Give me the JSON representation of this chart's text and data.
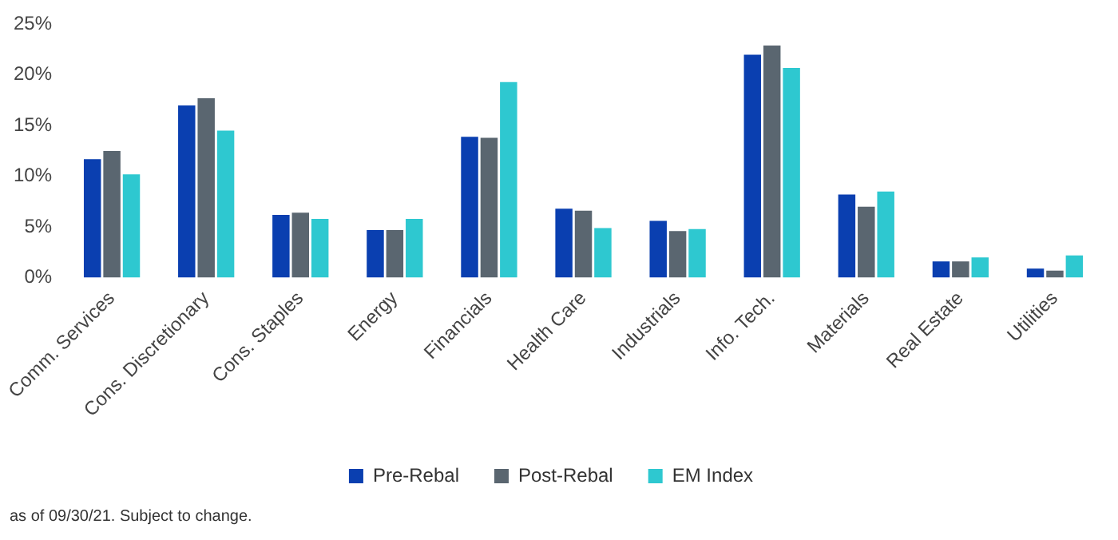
{
  "chart_data": {
    "type": "bar",
    "categories": [
      "Comm. Services",
      "Cons. Discretionary",
      "Cons. Staples",
      "Energy",
      "Financials",
      "Health Care",
      "Industrials",
      "Info. Tech.",
      "Materials",
      "Real Estate",
      "Utilities"
    ],
    "series": [
      {
        "name": "Pre-Rebal",
        "color": "#0a3fb0",
        "values": [
          11.7,
          17.0,
          6.2,
          4.7,
          13.9,
          6.8,
          5.6,
          22.0,
          8.2,
          1.6,
          0.9
        ]
      },
      {
        "name": "Post-Rebal",
        "color": "#5a6670",
        "values": [
          12.5,
          17.7,
          6.4,
          4.7,
          13.8,
          6.6,
          4.6,
          22.9,
          7.0,
          1.6,
          0.7
        ]
      },
      {
        "name": "EM Index",
        "color": "#2ec8d0",
        "values": [
          10.2,
          14.5,
          5.8,
          5.8,
          19.3,
          4.9,
          4.8,
          20.7,
          8.5,
          2.0,
          2.2
        ]
      }
    ],
    "ylim": [
      0,
      25
    ],
    "yticks": [
      {
        "value": 0,
        "label": "0%"
      },
      {
        "value": 5,
        "label": "5%"
      },
      {
        "value": 10,
        "label": "10%"
      },
      {
        "value": 15,
        "label": "15%"
      },
      {
        "value": 20,
        "label": "20%"
      },
      {
        "value": 25,
        "label": "25%"
      }
    ],
    "grid": false,
    "legend": "bottom",
    "annotations": [
      "as of 09/30/21. Subject to change."
    ]
  }
}
